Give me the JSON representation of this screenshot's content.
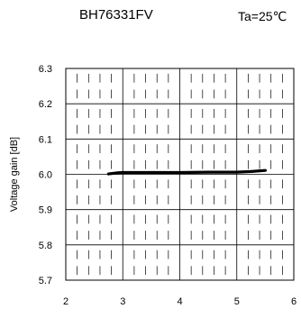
{
  "header": {
    "title": "BH76331FV",
    "condition": "Ta=25℃"
  },
  "chart_data": {
    "type": "line",
    "title": "BH76331FV",
    "annotation": "Ta=25℃",
    "xlabel": "",
    "ylabel": "Voltage gain [dB]",
    "xlim": [
      2,
      6
    ],
    "ylim": [
      5.7,
      6.3
    ],
    "x_ticks": [
      "2",
      "3",
      "4",
      "5",
      "6"
    ],
    "y_ticks": [
      "5.7",
      "5.8",
      "5.9",
      "6.0",
      "6.1",
      "6.2",
      "6.3"
    ],
    "grid": true,
    "minor_x_divisions": 5,
    "series": [
      {
        "x": [
          2.75,
          2.9,
          3.0,
          3.5,
          4.0,
          4.5,
          5.0,
          5.25,
          5.5
        ],
        "y": [
          6.001,
          6.004,
          6.005,
          6.005,
          6.005,
          6.006,
          6.006,
          6.008,
          6.011
        ]
      }
    ],
    "line_color": "#000000"
  }
}
